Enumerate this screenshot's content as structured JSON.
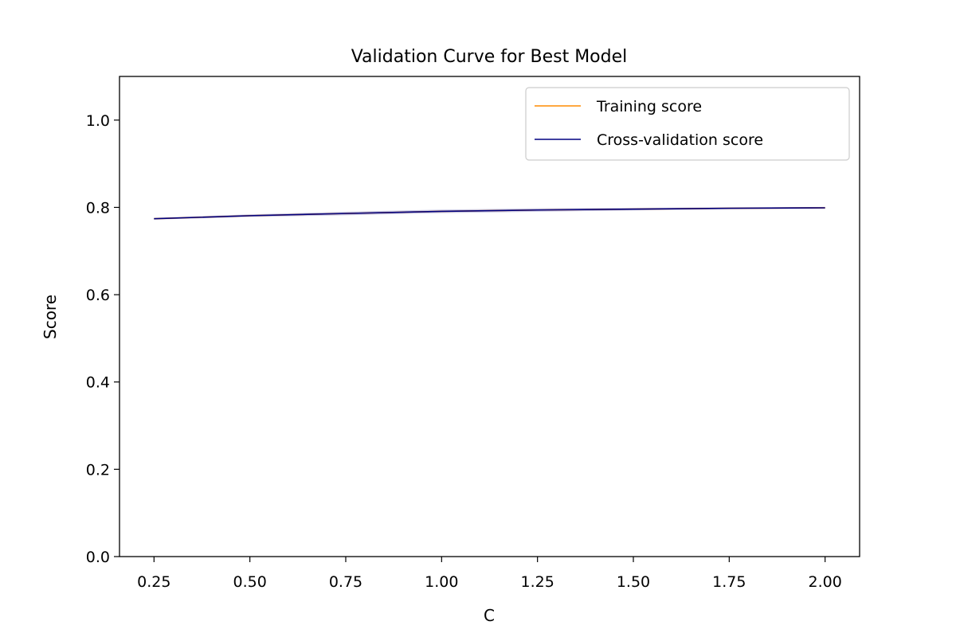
{
  "chart_data": {
    "type": "line",
    "title": "Validation Curve for Best Model",
    "xlabel": "C",
    "ylabel": "Score",
    "xlim": [
      0.16,
      2.09
    ],
    "ylim": [
      0.0,
      1.1
    ],
    "x_ticks": [
      "0.25",
      "0.50",
      "0.75",
      "1.00",
      "1.25",
      "1.50",
      "1.75",
      "2.00"
    ],
    "y_ticks": [
      "0.0",
      "0.2",
      "0.4",
      "0.6",
      "0.8",
      "1.0"
    ],
    "grid": false,
    "legend_position": "top-right",
    "series": [
      {
        "name": "Training score",
        "color": "#ff8c00",
        "x": [
          0.25,
          0.5,
          0.75,
          1.0,
          1.25,
          1.5,
          1.75,
          2.0
        ],
        "y": [
          0.774,
          0.781,
          0.786,
          0.791,
          0.794,
          0.796,
          0.798,
          0.799
        ],
        "band": [
          0.002,
          0.002,
          0.002,
          0.002,
          0.002,
          0.002,
          0.002,
          0.002
        ]
      },
      {
        "name": "Cross-validation score",
        "color": "#000080",
        "x": [
          0.25,
          0.5,
          0.75,
          1.0,
          1.25,
          1.5,
          1.75,
          2.0
        ],
        "y": [
          0.774,
          0.781,
          0.786,
          0.791,
          0.794,
          0.796,
          0.798,
          0.799
        ],
        "band": [
          0.002,
          0.003,
          0.004,
          0.004,
          0.004,
          0.003,
          0.002,
          0.002
        ]
      }
    ]
  }
}
